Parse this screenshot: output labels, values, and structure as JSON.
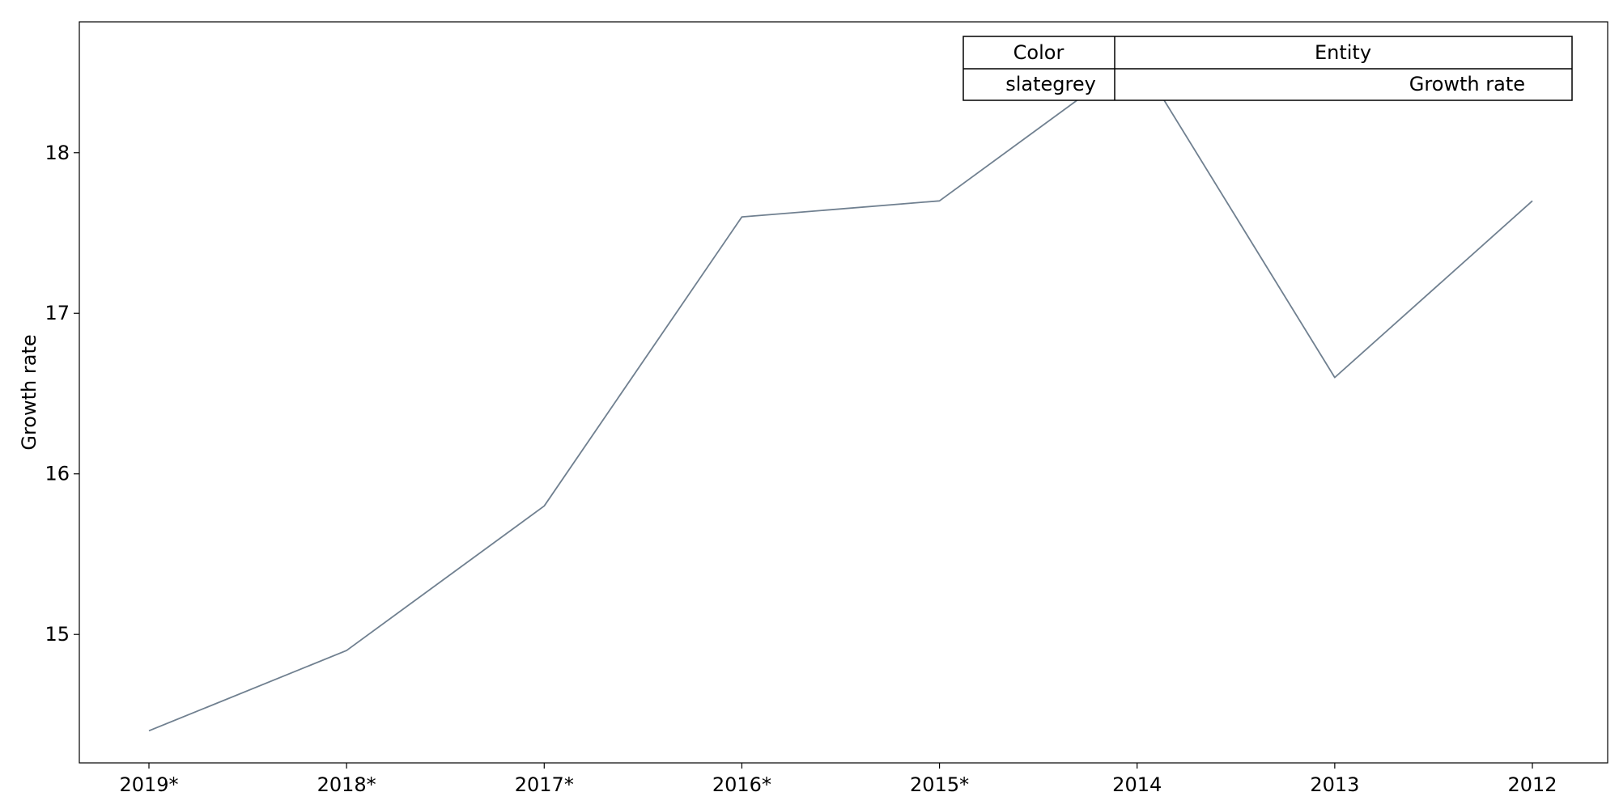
{
  "chart_data": {
    "type": "line",
    "x": [
      "2019*",
      "2018*",
      "2017*",
      "2016*",
      "2015*",
      "2014",
      "2013",
      "2012"
    ],
    "series": [
      {
        "name": "Growth rate",
        "color": "#708090",
        "values": [
          14.4,
          14.9,
          15.8,
          17.6,
          17.7,
          18.6,
          16.6,
          17.7
        ]
      }
    ],
    "title": "",
    "xlabel": "",
    "ylabel": "Growth rate",
    "ylim": [
      14.2,
      18.815
    ],
    "yticks": [
      15,
      16,
      17,
      18
    ],
    "grid": false,
    "legend": {
      "placement": "top-right",
      "headers": [
        "Color",
        "Entity"
      ],
      "rows": [
        {
          "color_name": "slategrey",
          "entity": "Growth rate"
        }
      ]
    }
  }
}
